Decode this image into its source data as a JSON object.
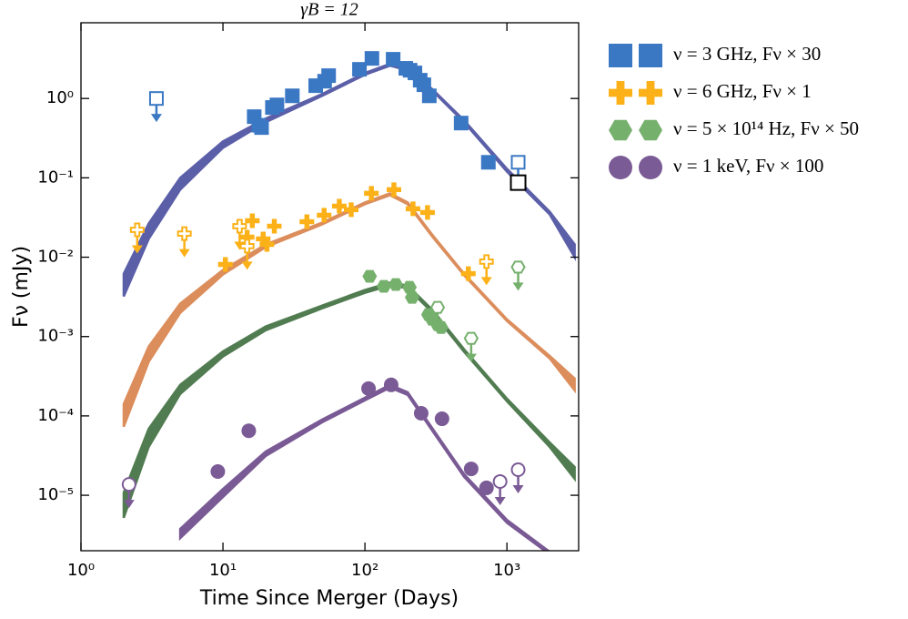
{
  "chart_data": {
    "type": "scatter",
    "title": "γB = 12",
    "x_label": "Time Since Merger (Days)",
    "y_label": "Fν (mJy)",
    "log_x": true,
    "log_y": true,
    "xlim": [
      1,
      3200
    ],
    "ylim": [
      2e-06,
      9
    ],
    "xticks": [
      {
        "value": 1,
        "label": "10⁰"
      },
      {
        "value": 10,
        "label": "10¹"
      },
      {
        "value": 100,
        "label": "10²"
      },
      {
        "value": 1000,
        "label": "10³"
      }
    ],
    "yticks": [
      {
        "value": 1e-05,
        "label": "10⁻⁵"
      },
      {
        "value": 0.0001,
        "label": "10⁻⁴"
      },
      {
        "value": 0.001,
        "label": "10⁻³"
      },
      {
        "value": 0.01,
        "label": "10⁻²"
      },
      {
        "value": 0.1,
        "label": "10⁻¹"
      },
      {
        "value": 1,
        "label": "10⁰"
      }
    ],
    "series": [
      {
        "name": "ν = 3 GHz, Fν × 30",
        "color": "#3b78c4",
        "band_color": "#5b5fa8",
        "marker": "square",
        "x": [
          16.6,
          17.9,
          18.7,
          22.3,
          24,
          30.8,
          45,
          52,
          55.5,
          91.5,
          112,
          158,
          194,
          208,
          225,
          245,
          260,
          284,
          476,
          740
        ],
        "values": [
          0.59,
          0.46,
          0.43,
          0.77,
          0.83,
          1.08,
          1.45,
          1.65,
          1.94,
          2.33,
          3.2,
          3.12,
          2.4,
          2.27,
          2.1,
          1.7,
          1.49,
          1.08,
          0.49,
          0.157
        ],
        "limits_x": [
          3.4,
          1200
        ],
        "limits": [
          1.0,
          0.157
        ],
        "model_x": [
          2,
          3,
          5,
          10,
          20,
          50,
          100,
          150,
          200,
          300,
          500,
          1000,
          2000,
          3000
        ],
        "model_high": [
          0.0062,
          0.0266,
          0.1,
          0.288,
          0.559,
          1.14,
          2.1,
          2.73,
          2.4,
          1.3,
          0.53,
          0.13,
          0.0376,
          0.0145
        ],
        "model_low": [
          0.0032,
          0.017,
          0.071,
          0.239,
          0.503,
          1.08,
          1.99,
          2.59,
          2.27,
          1.24,
          0.5,
          0.12,
          0.0347,
          0.01
        ]
      },
      {
        "name": "ν = 6 GHz, Fν × 1",
        "color": "#fbb117",
        "band_color": "#dc8d5c",
        "marker": "plus",
        "x": [
          10.4,
          14.8,
          16.1,
          19.2,
          20.4,
          23,
          39,
          51.6,
          66,
          80,
          111,
          160,
          218,
          276,
          535
        ],
        "values": [
          0.0081,
          0.0179,
          0.0288,
          0.017,
          0.0145,
          0.0246,
          0.028,
          0.0338,
          0.044,
          0.0396,
          0.0638,
          0.071,
          0.0407,
          0.0366,
          0.0062
        ],
        "limits_x": [
          2.49,
          5.35,
          13.1,
          14.8,
          718
        ],
        "limits": [
          0.0221,
          0.0198,
          0.0246,
          0.0138,
          0.0088
        ],
        "model_x": [
          2,
          3,
          5,
          10,
          20,
          50,
          100,
          150,
          200,
          300,
          500,
          1000,
          2000,
          3000
        ],
        "model_high": [
          0.000141,
          0.00075,
          0.0026,
          0.0069,
          0.0145,
          0.0273,
          0.049,
          0.0638,
          0.049,
          0.0189,
          0.0062,
          0.00165,
          0.00057,
          0.000296
        ],
        "model_low": [
          7.3e-05,
          0.00048,
          0.00199,
          0.00605,
          0.0134,
          0.0259,
          0.0465,
          0.0605,
          0.0465,
          0.0179,
          0.0059,
          0.00157,
          0.00053,
          0.00021
        ]
      },
      {
        "name": "ν = 5 × 10¹⁴ Hz, Fν × 50",
        "color": "#76b06d",
        "band_color": "#517c51",
        "marker": "hexagon",
        "x": [
          108,
          136,
          165,
          206,
          215,
          280,
          297,
          325,
          344
        ],
        "values": [
          0.00574,
          0.00429,
          0.00452,
          0.00418,
          0.00312,
          0.00189,
          0.00165,
          0.00141,
          0.0013
        ],
        "limits_x": [
          325,
          560,
          1200
        ],
        "limits": [
          0.00233,
          0.00095,
          0.0075
        ],
        "model_x": [
          2,
          3,
          5,
          10,
          20,
          50,
          100,
          150,
          200,
          300,
          500,
          1000,
          2000,
          3000
        ],
        "model_high": [
          1.08e-05,
          6.9e-05,
          0.000246,
          0.00065,
          0.00134,
          0.00246,
          0.00386,
          0.00477,
          0.0044,
          0.00215,
          0.00069,
          0.000165,
          4.64e-05,
          2.27e-05
        ],
        "model_low": [
          5.2e-06,
          4.07e-05,
          0.000189,
          0.00056,
          0.0012,
          0.00227,
          0.00356,
          0.0044,
          0.00407,
          0.00199,
          0.00064,
          0.000153,
          4.07e-05,
          1.61e-05
        ]
      },
      {
        "name": "ν = 1 keV, Fν × 100",
        "color": "#7b5b96",
        "band_color": "#7a5a94",
        "marker": "circle",
        "x": [
          9.2,
          15.2,
          106,
          153,
          249,
          349,
          560,
          718
        ],
        "values": [
          1.99e-05,
          6.5e-05,
          0.000221,
          0.000246,
          0.000108,
          9.2e-05,
          2.15e-05,
          1.24e-05
        ],
        "limits_x": [
          2.18,
          895,
          1200
        ],
        "limits": [
          1.37e-05,
          1.49e-05,
          2.1e-05
        ],
        "model_x": [
          5,
          10,
          20,
          50,
          100,
          150,
          200,
          300,
          500,
          1000,
          2000
        ],
        "model_high": [
          3.76e-06,
          1.2e-05,
          3.56e-05,
          9e-05,
          0.00017,
          0.000246,
          0.000199,
          6.9e-05,
          1.84e-05,
          4.9e-06,
          1.94e-06
        ],
        "model_low": [
          2.88e-06,
          9.5e-06,
          3.12e-05,
          8.3e-05,
          0.000157,
          0.000227,
          0.000184,
          6.4e-05,
          1.7e-05,
          4.5e-06,
          1.8e-06
        ]
      },
      {
        "color": "#000000",
        "marker": "open-square",
        "x": [
          1200
        ],
        "values": [
          0.087
        ]
      }
    ]
  }
}
